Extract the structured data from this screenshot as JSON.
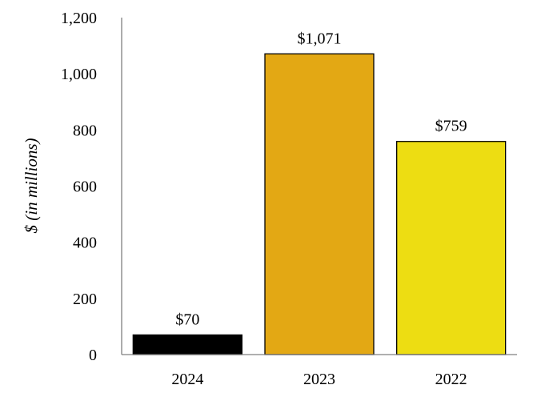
{
  "chart_data": {
    "type": "bar",
    "title": "",
    "xlabel": "",
    "ylabel": "$ (in millions)",
    "categories": [
      "2024",
      "2023",
      "2022"
    ],
    "values": [
      70,
      1071,
      759
    ],
    "data_labels": [
      "$70",
      "$1,071",
      "$759"
    ],
    "bar_colors": [
      "#000000",
      "#E3A814",
      "#EDDD12"
    ],
    "ylim": [
      0,
      1200
    ],
    "yticks": [
      0,
      200,
      400,
      600,
      800,
      1000,
      1200
    ],
    "ytick_labels": [
      "0",
      "200",
      "400",
      "600",
      "800",
      "1,000",
      "1,200"
    ],
    "grid": false,
    "legend": "none"
  }
}
